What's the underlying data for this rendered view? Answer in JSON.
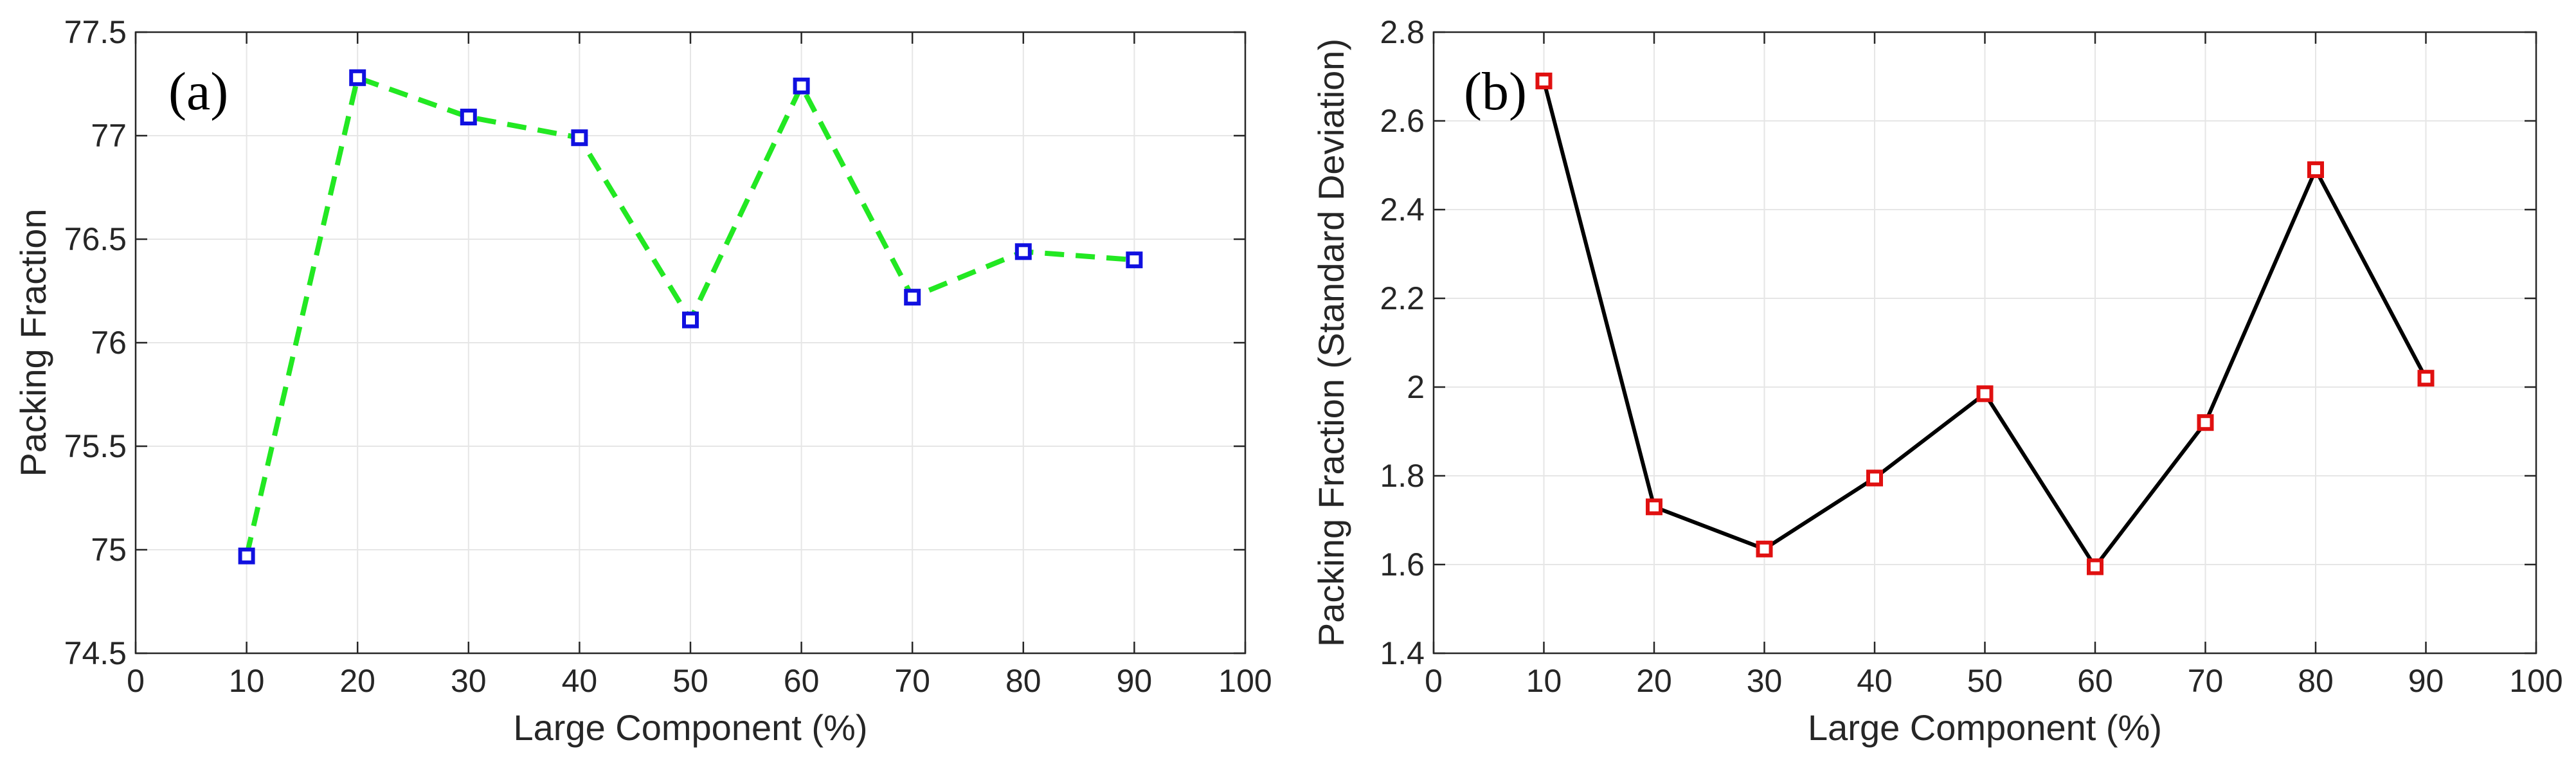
{
  "chart_data": [
    {
      "type": "line",
      "panel_label": "(a)",
      "xlabel": "Large Component (%)",
      "ylabel": "Packing Fraction",
      "xlim": [
        0,
        100
      ],
      "ylim": [
        74.5,
        77.5
      ],
      "xticks": [
        0,
        10,
        20,
        30,
        40,
        50,
        60,
        70,
        80,
        90,
        100
      ],
      "yticks": [
        74.5,
        75,
        75.5,
        76,
        76.5,
        77,
        77.5
      ],
      "xtick_labels": [
        "0",
        "10",
        "20",
        "30",
        "40",
        "50",
        "60",
        "70",
        "80",
        "90",
        "100"
      ],
      "ytick_labels": [
        "74.5",
        "75",
        "75.5",
        "76",
        "76.5",
        "77",
        "77.5"
      ],
      "grid": true,
      "series": [
        {
          "name": "Packing Fraction",
          "line_style": "dashed",
          "line_color": "#22e822",
          "marker": "square",
          "marker_color": "#1010e0",
          "x": [
            10,
            20,
            30,
            40,
            50,
            60,
            70,
            80,
            90
          ],
          "y": [
            74.97,
            77.28,
            77.09,
            76.99,
            76.11,
            77.24,
            76.22,
            76.44,
            76.4
          ]
        }
      ]
    },
    {
      "type": "line",
      "panel_label": "(b)",
      "xlabel": "Large Component (%)",
      "ylabel": "Packing Fraction (Standard Deviation)",
      "xlim": [
        0,
        100
      ],
      "ylim": [
        1.4,
        2.8
      ],
      "xticks": [
        0,
        10,
        20,
        30,
        40,
        50,
        60,
        70,
        80,
        90,
        100
      ],
      "yticks": [
        1.4,
        1.6,
        1.8,
        2.0,
        2.2,
        2.4,
        2.6,
        2.8
      ],
      "xtick_labels": [
        "0",
        "10",
        "20",
        "30",
        "40",
        "50",
        "60",
        "70",
        "80",
        "90",
        "100"
      ],
      "ytick_labels": [
        "1.4",
        "1.6",
        "1.8",
        "2",
        "2.2",
        "2.4",
        "2.6",
        "2.8"
      ],
      "grid": true,
      "series": [
        {
          "name": "Packing Fraction (Standard Deviation)",
          "line_style": "solid",
          "line_color": "#000000",
          "marker": "square",
          "marker_color": "#e01010",
          "x": [
            10,
            20,
            30,
            40,
            50,
            60,
            70,
            80,
            90
          ],
          "y": [
            2.69,
            1.73,
            1.635,
            1.795,
            1.985,
            1.595,
            1.92,
            2.49,
            2.02
          ]
        }
      ]
    }
  ]
}
